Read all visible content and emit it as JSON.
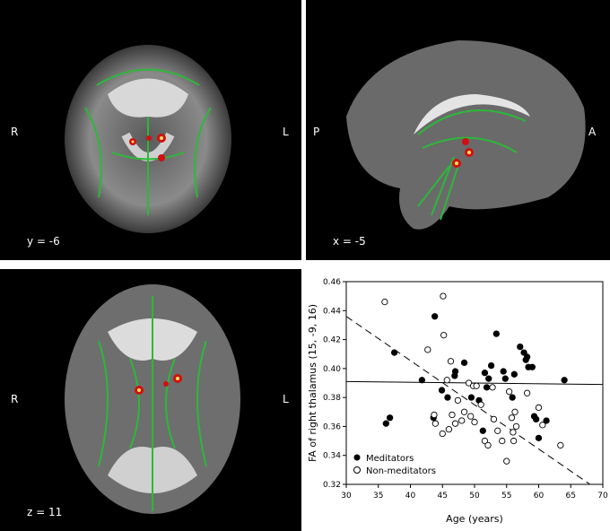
{
  "panels": {
    "coronal": {
      "left_label": "R",
      "right_label": "L",
      "coord_label": "y = -6"
    },
    "sagittal": {
      "left_label": "P",
      "right_label": "A",
      "coord_label": "x = -5"
    },
    "axial": {
      "left_label": "R",
      "right_label": "L",
      "coord_label": "z = 11"
    }
  },
  "colors": {
    "background": "#000000",
    "tract": "#2db83a",
    "cluster": "#d01010",
    "cluster_core": "#ffe060"
  },
  "chart_data": {
    "type": "scatter",
    "xlabel": "Age (years)",
    "ylabel": "FA of right thalamus (15, -9, 16)",
    "xlim": [
      30,
      70
    ],
    "ylim": [
      0.32,
      0.46
    ],
    "xticks": [
      "30",
      "35",
      "40",
      "45",
      "50",
      "55",
      "60",
      "65",
      "70"
    ],
    "yticks": [
      "0.32",
      "0.34",
      "0.36",
      "0.38",
      "0.40",
      "0.42",
      "0.44",
      "0.46"
    ],
    "legend_position": "bottom-left",
    "series": [
      {
        "name": "Meditators",
        "marker": "filled",
        "points": [
          [
            36.2,
            0.362
          ],
          [
            36.8,
            0.366
          ],
          [
            37.5,
            0.411
          ],
          [
            41.8,
            0.392
          ],
          [
            43.6,
            0.366
          ],
          [
            43.8,
            0.436
          ],
          [
            44.9,
            0.385
          ],
          [
            45.8,
            0.38
          ],
          [
            46.9,
            0.395
          ],
          [
            47.0,
            0.398
          ],
          [
            48.4,
            0.404
          ],
          [
            49.5,
            0.38
          ],
          [
            50.7,
            0.378
          ],
          [
            51.3,
            0.357
          ],
          [
            51.6,
            0.397
          ],
          [
            51.9,
            0.387
          ],
          [
            52.2,
            0.393
          ],
          [
            52.6,
            0.402
          ],
          [
            53.4,
            0.424
          ],
          [
            54.5,
            0.398
          ],
          [
            54.8,
            0.393
          ],
          [
            55.9,
            0.38
          ],
          [
            56.2,
            0.396
          ],
          [
            57.1,
            0.415
          ],
          [
            57.7,
            0.411
          ],
          [
            58.0,
            0.406
          ],
          [
            58.2,
            0.408
          ],
          [
            58.4,
            0.401
          ],
          [
            59.0,
            0.401
          ],
          [
            59.3,
            0.367
          ],
          [
            59.6,
            0.365
          ],
          [
            60.0,
            0.352
          ],
          [
            61.2,
            0.364
          ],
          [
            64.0,
            0.392
          ]
        ],
        "color": "#000000"
      },
      {
        "name": "Non-meditators",
        "marker": "open",
        "points": [
          [
            36.0,
            0.446
          ],
          [
            42.7,
            0.413
          ],
          [
            43.7,
            0.368
          ],
          [
            43.9,
            0.362
          ],
          [
            45.1,
            0.45
          ],
          [
            45.2,
            0.423
          ],
          [
            45.0,
            0.355
          ],
          [
            45.7,
            0.392
          ],
          [
            46.0,
            0.358
          ],
          [
            46.3,
            0.405
          ],
          [
            46.5,
            0.368
          ],
          [
            47.0,
            0.362
          ],
          [
            47.4,
            0.378
          ],
          [
            48.0,
            0.364
          ],
          [
            48.4,
            0.37
          ],
          [
            49.1,
            0.39
          ],
          [
            49.4,
            0.367
          ],
          [
            49.8,
            0.388
          ],
          [
            50.0,
            0.363
          ],
          [
            50.3,
            0.388
          ],
          [
            51.0,
            0.375
          ],
          [
            51.6,
            0.35
          ],
          [
            52.1,
            0.347
          ],
          [
            52.8,
            0.387
          ],
          [
            53.0,
            0.365
          ],
          [
            53.6,
            0.357
          ],
          [
            54.3,
            0.35
          ],
          [
            55.0,
            0.336
          ],
          [
            55.4,
            0.384
          ],
          [
            55.8,
            0.366
          ],
          [
            56.0,
            0.356
          ],
          [
            56.1,
            0.35
          ],
          [
            56.3,
            0.37
          ],
          [
            56.5,
            0.36
          ],
          [
            58.2,
            0.383
          ],
          [
            60.0,
            0.373
          ],
          [
            60.6,
            0.361
          ],
          [
            63.4,
            0.347
          ]
        ],
        "color": "#000000"
      }
    ],
    "fit_lines": [
      {
        "style": "solid",
        "from": [
          30,
          0.391
        ],
        "to": [
          70,
          0.389
        ]
      },
      {
        "style": "dashed",
        "from": [
          30,
          0.436
        ],
        "to": [
          68,
          0.32
        ]
      }
    ]
  }
}
